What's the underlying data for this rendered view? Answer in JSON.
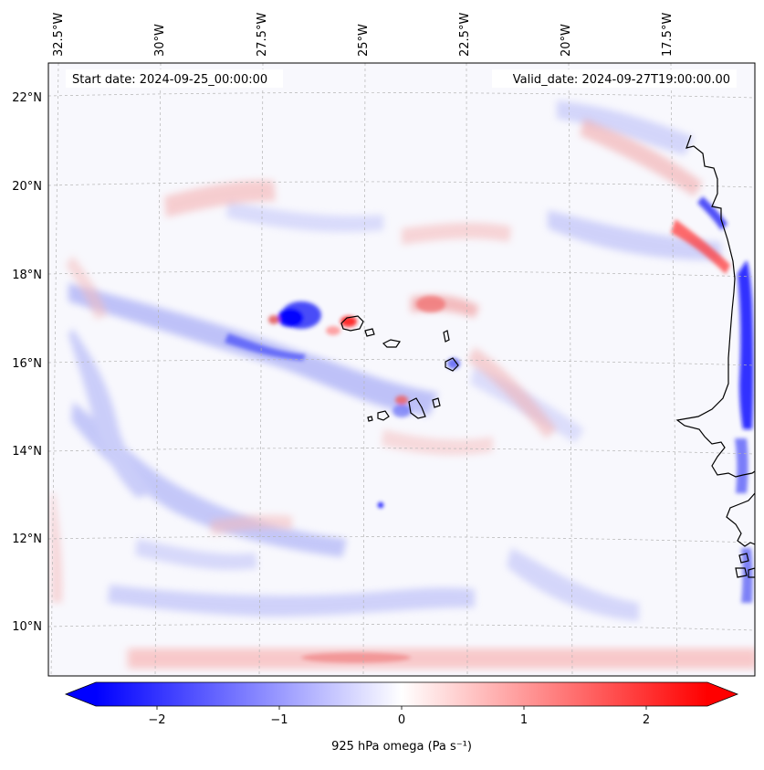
{
  "map": {
    "start_date": "Start date: 2024-09-25_00:00:00",
    "valid_date": "Valid_date: 2024-09-27T19:00:00.00",
    "lon_labels": [
      "32.5°W",
      "30°W",
      "27.5°W",
      "25°W",
      "22.5°W",
      "20°W",
      "17.5°W"
    ],
    "lat_labels": [
      "22°N",
      "20°N",
      "18°N",
      "16°N",
      "14°N",
      "12°N",
      "10°N"
    ],
    "colors": {
      "negative": "#0000ff",
      "zero": "#ffffff",
      "positive": "#ff0000",
      "background_tint": "#f7f7fd",
      "coastline": "#000000",
      "gridline": "#b4b4b4"
    }
  },
  "colorbar": {
    "label": "925 hPa omega (Pa s⁻¹)",
    "ticks": [
      "−2",
      "−1",
      "0",
      "1",
      "2"
    ],
    "tick_values": [
      -2,
      -1,
      0,
      1,
      2
    ],
    "range": [
      -2.5,
      2.5
    ],
    "extend": "both"
  }
}
